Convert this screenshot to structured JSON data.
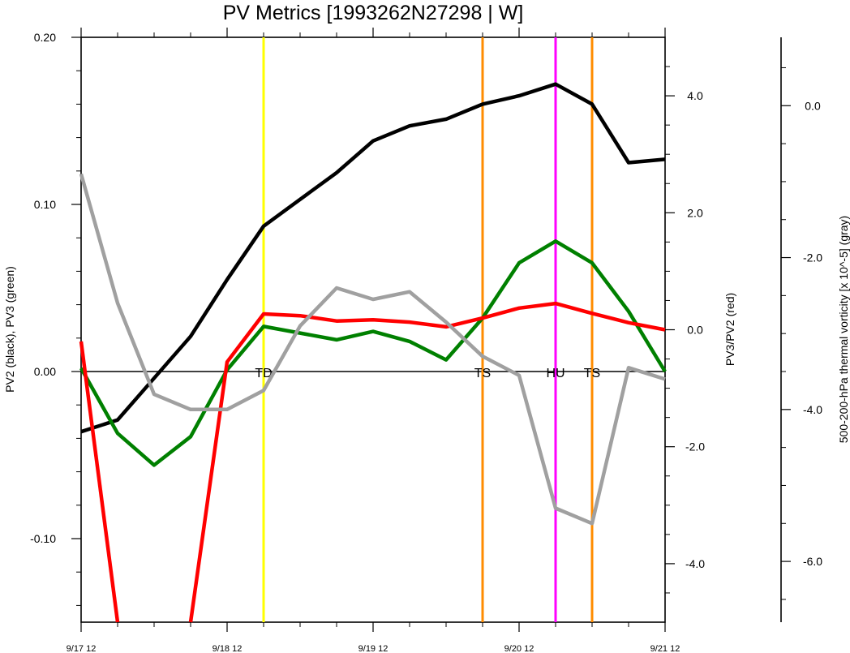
{
  "chart_data": {
    "type": "line",
    "title": "PV Metrics [1993262N27298 | W]",
    "x_tick_labels": [
      "9/17 12",
      "9/18 12",
      "9/19 12",
      "9/20 12",
      "9/21 12"
    ],
    "x_unit": "days after 9/17 12",
    "x": [
      0,
      0.25,
      0.5,
      0.75,
      1.0,
      1.25,
      1.5,
      1.75,
      2.0,
      2.25,
      2.5,
      2.75,
      3.0,
      3.25,
      3.5,
      3.75,
      4.0
    ],
    "left_axis": {
      "label": "PV2 (black), PV3 (green)",
      "ylim": [
        -0.15,
        0.2
      ],
      "tick_values": [
        -0.1,
        0.0,
        0.1,
        0.2
      ],
      "tick_labels": [
        "-0.10",
        "0.00",
        "0.10",
        "0.20"
      ]
    },
    "right_axis_1": {
      "label": "PV3/PV2 (red)",
      "ylim": [
        -5.0,
        5.0
      ],
      "tick_values": [
        -4,
        -2,
        0,
        2,
        4
      ],
      "tick_labels": [
        "-4.0",
        "-2.0",
        "0.0",
        "2.0",
        "4.0"
      ]
    },
    "right_axis_2": {
      "label": "500-200-hPa thermal vorticity [x 10^-5] (gray)",
      "ylim": [
        -6.8,
        0.9
      ],
      "tick_values": [
        -6,
        -4,
        -2,
        0
      ],
      "tick_labels": [
        "-6.0",
        "-4.0",
        "-2.0",
        "0.0"
      ]
    },
    "series": [
      {
        "name": "PV2",
        "color": "#000000",
        "axis": "left",
        "values": [
          -0.036,
          -0.029,
          -0.004,
          0.021,
          0.055,
          0.087,
          0.103,
          0.119,
          0.138,
          0.147,
          0.151,
          0.16,
          0.165,
          0.172,
          0.16,
          0.125,
          0.127
        ]
      },
      {
        "name": "PV3",
        "color": "#008000",
        "axis": "left",
        "values": [
          0.002,
          -0.037,
          -0.056,
          -0.039,
          0.001,
          0.027,
          0.023,
          0.019,
          0.024,
          0.018,
          0.007,
          0.032,
          0.065,
          0.078,
          0.065,
          0.036,
          0.0
        ]
      },
      {
        "name": "PV3/PV2",
        "color": "#ff0000",
        "axis": "right1",
        "values": [
          -0.2,
          -5.0,
          null,
          -5.0,
          -0.55,
          0.27,
          0.24,
          0.15,
          0.17,
          0.13,
          0.05,
          0.2,
          0.37,
          0.45,
          0.28,
          0.12,
          0.0
        ]
      },
      {
        "name": "thermal vorticity",
        "color": "#a0a0a0",
        "axis": "right2",
        "values": [
          -0.9,
          -2.6,
          -3.8,
          -4.0,
          -4.0,
          -3.75,
          -2.9,
          -2.4,
          -2.55,
          -2.45,
          -2.85,
          -3.3,
          -3.55,
          -5.3,
          -5.5,
          -3.45,
          -3.6
        ]
      }
    ],
    "events": [
      {
        "label": "TD",
        "x": 1.25,
        "color": "#ffff00"
      },
      {
        "label": "TS",
        "x": 2.75,
        "color": "#ff8c00"
      },
      {
        "label": "HU",
        "x": 3.25,
        "color": "#ff00ff"
      },
      {
        "label": "TS",
        "x": 3.5,
        "color": "#ff8c00"
      }
    ],
    "grid": false,
    "zero_line": true
  }
}
